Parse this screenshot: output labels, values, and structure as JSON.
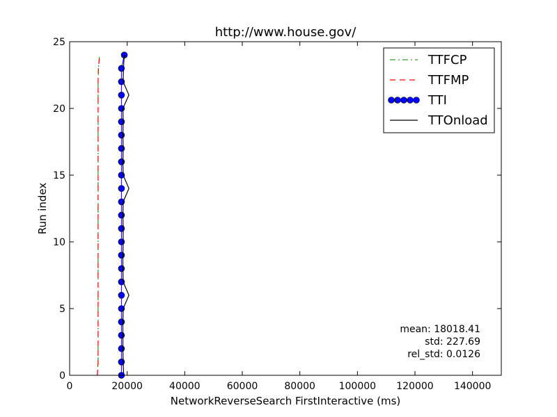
{
  "chart_data": {
    "type": "line",
    "title": "http://www.house.gov/",
    "xlabel": "NetworkReverseSearch FirstInteractive (ms)",
    "ylabel": "Run index",
    "xlim": [
      0,
      150000
    ],
    "ylim": [
      0,
      25
    ],
    "xticks": [
      0,
      20000,
      40000,
      60000,
      80000,
      100000,
      120000,
      140000
    ],
    "xtick_labels": [
      "0",
      "20000",
      "40000",
      "60000",
      "80000",
      "100000",
      "120000",
      "140000"
    ],
    "yticks": [
      0,
      5,
      10,
      15,
      20,
      25
    ],
    "ytick_labels": [
      "0",
      "5",
      "10",
      "15",
      "20",
      "25"
    ],
    "grid": false,
    "legend_position": "top-right",
    "series": [
      {
        "name": "TTFCP",
        "color": "#008000",
        "style": "dash-dot",
        "y": [
          0,
          1,
          2,
          3,
          4,
          5,
          6,
          7,
          8,
          9,
          10,
          11,
          12,
          13,
          14,
          15,
          16,
          17,
          18,
          19,
          20,
          21,
          22,
          23,
          24
        ],
        "x": [
          9600,
          9900,
          9900,
          9900,
          9900,
          9900,
          9900,
          9900,
          9900,
          9900,
          9900,
          9900,
          9900,
          9900,
          9900,
          9900,
          9900,
          9900,
          9900,
          9900,
          9900,
          9900,
          9900,
          10000,
          10400
        ]
      },
      {
        "name": "TTFMP",
        "color": "#ff0000",
        "style": "dashed",
        "y": [
          0,
          1,
          2,
          3,
          4,
          5,
          6,
          7,
          8,
          9,
          10,
          11,
          12,
          13,
          14,
          15,
          16,
          17,
          18,
          19,
          20,
          21,
          22,
          23,
          24
        ],
        "x": [
          9600,
          9900,
          9900,
          9900,
          9900,
          9900,
          9900,
          9900,
          9900,
          9900,
          9900,
          9900,
          9900,
          9900,
          9900,
          9900,
          9900,
          9900,
          9900,
          9900,
          9900,
          9900,
          9900,
          10000,
          10400
        ]
      },
      {
        "name": "TTI",
        "color": "#0000ff",
        "style": "line-with-circles",
        "y": [
          0,
          1,
          2,
          3,
          4,
          5,
          6,
          7,
          8,
          9,
          10,
          11,
          12,
          13,
          14,
          15,
          16,
          17,
          18,
          19,
          20,
          21,
          22,
          23,
          24
        ],
        "x": [
          18000,
          18000,
          18000,
          18000,
          18000,
          18000,
          18000,
          18000,
          18000,
          18000,
          18000,
          18000,
          18000,
          18000,
          18000,
          18000,
          18000,
          18000,
          18000,
          18000,
          18000,
          18000,
          18000,
          18000,
          19000
        ]
      },
      {
        "name": "TTOnload",
        "color": "#000000",
        "style": "solid",
        "y": [
          0,
          1,
          2,
          3,
          4,
          5,
          6,
          7,
          8,
          9,
          10,
          11,
          12,
          13,
          14,
          15,
          16,
          17,
          18,
          19,
          20,
          21,
          22,
          23,
          24
        ],
        "x": [
          18800,
          18600,
          18500,
          18500,
          18500,
          18600,
          20600,
          18600,
          18500,
          18500,
          18600,
          18600,
          18500,
          18600,
          20600,
          18600,
          18500,
          18600,
          18500,
          18600,
          18500,
          20600,
          18600,
          18700,
          19000
        ]
      }
    ],
    "stats": {
      "mean": "mean: 18018.41",
      "std": "std: 227.69",
      "rel_std": "rel_std: 0.0126"
    }
  }
}
